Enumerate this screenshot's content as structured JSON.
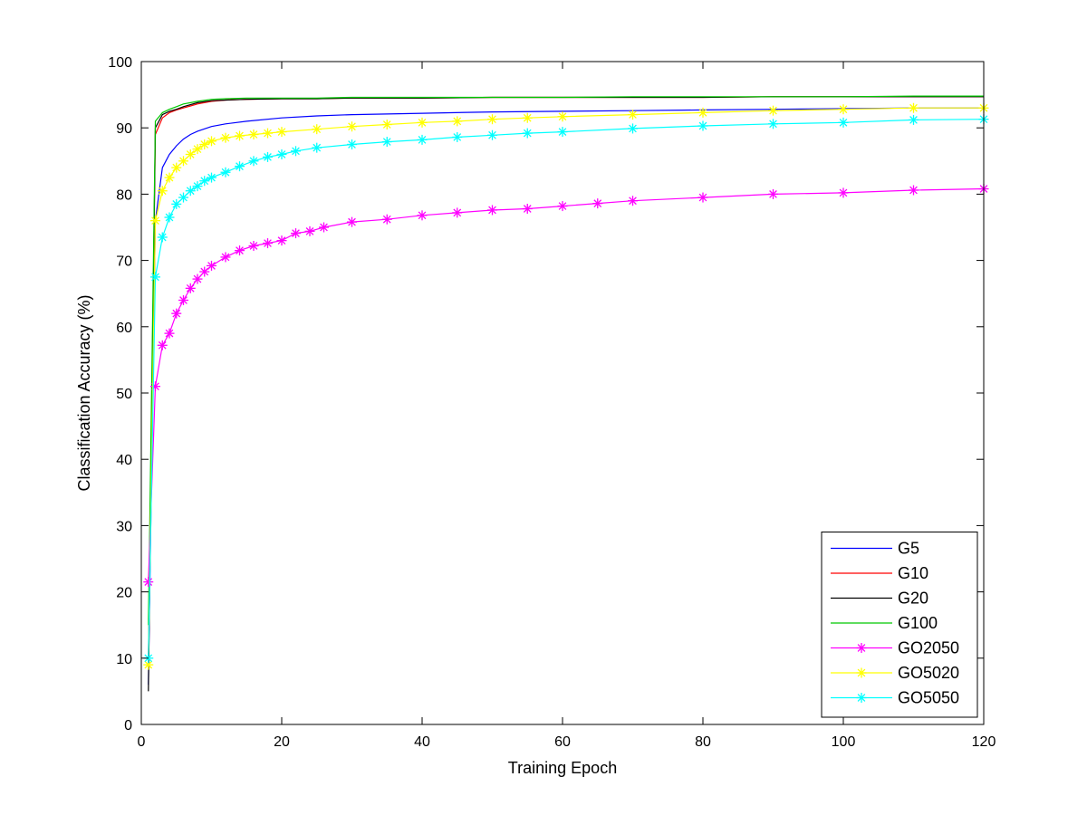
{
  "chart_data": {
    "type": "line",
    "title": "",
    "xlabel": "Training Epoch",
    "ylabel": "Classification Accuracy (%)",
    "xlim": [
      0,
      120
    ],
    "ylim": [
      0,
      100
    ],
    "xticks": [
      0,
      20,
      40,
      60,
      80,
      100,
      120
    ],
    "yticks": [
      0,
      10,
      20,
      30,
      40,
      50,
      60,
      70,
      80,
      90,
      100
    ],
    "grid": false,
    "legend": "bottom-right",
    "series": [
      {
        "name": "G5",
        "color": "#0000ff",
        "marker": "none",
        "x": [
          1,
          2,
          3,
          4,
          5,
          6,
          7,
          8,
          10,
          12,
          15,
          20,
          25,
          30,
          40,
          50,
          60,
          70,
          80,
          90,
          100,
          110,
          120
        ],
        "y": [
          6,
          76,
          84,
          86,
          87.3,
          88.3,
          89,
          89.5,
          90.2,
          90.6,
          91,
          91.5,
          91.8,
          92,
          92.2,
          92.4,
          92.5,
          92.6,
          92.7,
          92.8,
          92.9,
          93.0,
          93.0
        ]
      },
      {
        "name": "G10",
        "color": "#ff0000",
        "marker": "none",
        "x": [
          1,
          2,
          3,
          4,
          5,
          6,
          7,
          8,
          10,
          12,
          15,
          20,
          25,
          30,
          40,
          50,
          60,
          70,
          80,
          90,
          100,
          110,
          120
        ],
        "y": [
          10,
          89,
          91.5,
          92.3,
          92.7,
          93,
          93.3,
          93.6,
          94,
          94.2,
          94.3,
          94.4,
          94.4,
          94.5,
          94.5,
          94.6,
          94.6,
          94.6,
          94.6,
          94.7,
          94.7,
          94.7,
          94.7
        ]
      },
      {
        "name": "G20",
        "color": "#000000",
        "marker": "none",
        "x": [
          1,
          2,
          3,
          4,
          5,
          6,
          7,
          8,
          10,
          12,
          15,
          20,
          25,
          30,
          40,
          50,
          60,
          70,
          80,
          90,
          100,
          110,
          120
        ],
        "y": [
          5,
          90,
          92,
          92.5,
          92.8,
          93.2,
          93.5,
          93.8,
          94.1,
          94.2,
          94.3,
          94.4,
          94.4,
          94.5,
          94.5,
          94.6,
          94.6,
          94.6,
          94.6,
          94.7,
          94.7,
          94.7,
          94.7
        ]
      },
      {
        "name": "G100",
        "color": "#00c800",
        "marker": "none",
        "x": [
          1,
          2,
          3,
          4,
          5,
          6,
          7,
          8,
          10,
          12,
          15,
          20,
          25,
          30,
          40,
          50,
          60,
          70,
          80,
          90,
          100,
          110,
          120
        ],
        "y": [
          15,
          91,
          92.3,
          92.8,
          93.2,
          93.6,
          93.8,
          94,
          94.3,
          94.4,
          94.5,
          94.5,
          94.5,
          94.6,
          94.6,
          94.6,
          94.6,
          94.7,
          94.7,
          94.7,
          94.7,
          94.8,
          94.8
        ]
      },
      {
        "name": "GO2050",
        "color": "#ff00ff",
        "marker": "star",
        "x": [
          1,
          2,
          3,
          4,
          5,
          6,
          7,
          8,
          9,
          10,
          12,
          14,
          16,
          18,
          20,
          22,
          24,
          26,
          30,
          35,
          40,
          45,
          50,
          55,
          60,
          65,
          70,
          80,
          90,
          100,
          110,
          120
        ],
        "y": [
          21.5,
          51,
          57.2,
          59,
          62,
          64,
          65.8,
          67.2,
          68.3,
          69.2,
          70.5,
          71.5,
          72.2,
          72.6,
          73,
          74.1,
          74.4,
          75,
          75.8,
          76.2,
          76.8,
          77.2,
          77.6,
          77.8,
          78.2,
          78.6,
          79,
          79.5,
          80,
          80.2,
          80.6,
          80.8
        ]
      },
      {
        "name": "GO5020",
        "color": "#ffff00",
        "marker": "star",
        "x": [
          1,
          2,
          3,
          4,
          5,
          6,
          7,
          8,
          9,
          10,
          12,
          14,
          16,
          18,
          20,
          25,
          30,
          35,
          40,
          45,
          50,
          55,
          60,
          70,
          80,
          90,
          100,
          110,
          120
        ],
        "y": [
          9,
          76,
          80.5,
          82.5,
          84,
          85,
          86,
          86.8,
          87.5,
          88,
          88.5,
          88.8,
          89,
          89.2,
          89.4,
          89.8,
          90.2,
          90.5,
          90.8,
          91,
          91.3,
          91.5,
          91.7,
          92,
          92.3,
          92.6,
          92.8,
          93,
          93
        ]
      },
      {
        "name": "GO5050",
        "color": "#00ffff",
        "marker": "star",
        "x": [
          1,
          2,
          3,
          4,
          5,
          6,
          7,
          8,
          9,
          10,
          12,
          14,
          16,
          18,
          20,
          22,
          25,
          30,
          35,
          40,
          45,
          50,
          55,
          60,
          70,
          80,
          90,
          100,
          110,
          120
        ],
        "y": [
          10,
          67.5,
          73.5,
          76.5,
          78.5,
          79.5,
          80.5,
          81.2,
          82,
          82.5,
          83.3,
          84.2,
          85,
          85.6,
          86,
          86.5,
          87,
          87.5,
          87.9,
          88.2,
          88.6,
          88.9,
          89.2,
          89.4,
          89.9,
          90.3,
          90.6,
          90.8,
          91.2,
          91.3
        ]
      }
    ]
  }
}
